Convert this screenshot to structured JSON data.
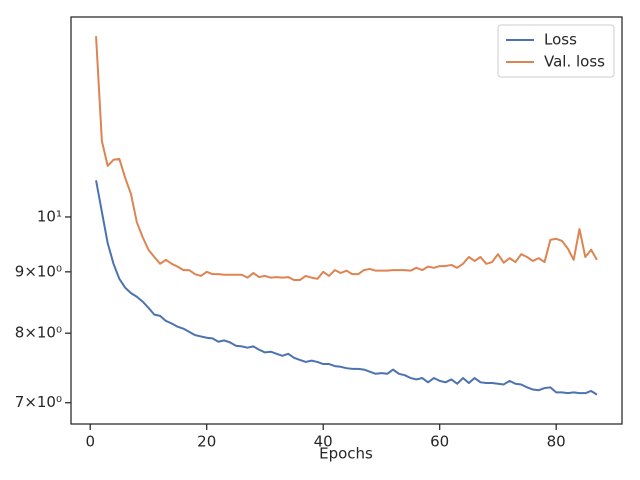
{
  "chart_data": {
    "type": "line",
    "xlabel": "Epochs",
    "x": [
      1,
      2,
      3,
      4,
      5,
      6,
      7,
      8,
      9,
      10,
      11,
      12,
      13,
      14,
      15,
      16,
      17,
      18,
      19,
      20,
      21,
      22,
      23,
      24,
      25,
      26,
      27,
      28,
      29,
      30,
      31,
      32,
      33,
      34,
      35,
      36,
      37,
      38,
      39,
      40,
      41,
      42,
      43,
      44,
      45,
      46,
      47,
      48,
      49,
      50,
      51,
      52,
      53,
      54,
      55,
      56,
      57,
      58,
      59,
      60,
      61,
      62,
      63,
      64,
      65,
      66,
      67,
      68,
      69,
      70,
      71,
      72,
      73,
      74,
      75,
      76,
      77,
      78,
      79,
      80,
      81,
      82,
      83,
      84,
      85,
      86,
      87
    ],
    "series": [
      {
        "name": "Loss",
        "color": "#4c72b0",
        "values": [
          10.73,
          10.1,
          9.51,
          9.14,
          8.88,
          8.73,
          8.64,
          8.58,
          8.5,
          8.4,
          8.29,
          8.27,
          8.19,
          8.15,
          8.1,
          8.07,
          8.02,
          7.97,
          7.95,
          7.93,
          7.92,
          7.87,
          7.89,
          7.86,
          7.81,
          7.8,
          7.78,
          7.8,
          7.75,
          7.71,
          7.72,
          7.69,
          7.66,
          7.69,
          7.63,
          7.6,
          7.57,
          7.59,
          7.57,
          7.54,
          7.54,
          7.51,
          7.5,
          7.48,
          7.47,
          7.47,
          7.46,
          7.43,
          7.4,
          7.41,
          7.4,
          7.46,
          7.4,
          7.38,
          7.34,
          7.32,
          7.34,
          7.28,
          7.34,
          7.3,
          7.28,
          7.32,
          7.26,
          7.34,
          7.27,
          7.34,
          7.28,
          7.27,
          7.27,
          7.26,
          7.25,
          7.3,
          7.26,
          7.25,
          7.21,
          7.18,
          7.17,
          7.2,
          7.21,
          7.14,
          7.14,
          7.13,
          7.14,
          7.13,
          7.13,
          7.16,
          7.11
        ]
      },
      {
        "name": "Val. loss",
        "color": "#dd8452",
        "values": [
          14.15,
          11.57,
          11.03,
          11.16,
          11.18,
          10.78,
          10.45,
          9.9,
          9.62,
          9.39,
          9.26,
          9.14,
          9.21,
          9.14,
          9.09,
          9.03,
          9.03,
          8.96,
          8.93,
          9.0,
          8.96,
          8.96,
          8.95,
          8.95,
          8.95,
          8.95,
          8.9,
          8.98,
          8.91,
          8.93,
          8.9,
          8.91,
          8.9,
          8.91,
          8.86,
          8.86,
          8.93,
          8.9,
          8.88,
          9.0,
          8.93,
          9.03,
          8.98,
          9.02,
          8.96,
          8.96,
          9.03,
          9.05,
          9.02,
          9.02,
          9.02,
          9.03,
          9.03,
          9.03,
          9.02,
          9.07,
          9.03,
          9.09,
          9.07,
          9.1,
          9.1,
          9.12,
          9.07,
          9.14,
          9.26,
          9.19,
          9.26,
          9.14,
          9.17,
          9.31,
          9.16,
          9.24,
          9.17,
          9.31,
          9.26,
          9.19,
          9.24,
          9.17,
          9.57,
          9.59,
          9.55,
          9.41,
          9.21,
          9.77,
          9.26,
          9.39,
          9.21
        ]
      }
    ],
    "xlim": [
      -3.3,
      91.3
    ],
    "xticks": [
      0,
      20,
      40,
      60,
      80
    ],
    "ylim": [
      6.72,
      14.68
    ],
    "ylog": true,
    "yticks": [
      {
        "value": 7,
        "label": "7×10⁰"
      },
      {
        "value": 8,
        "label": "8×10⁰"
      },
      {
        "value": 9,
        "label": "9×10⁰"
      },
      {
        "value": 10,
        "label": "10¹"
      }
    ],
    "legend": "upper right"
  }
}
